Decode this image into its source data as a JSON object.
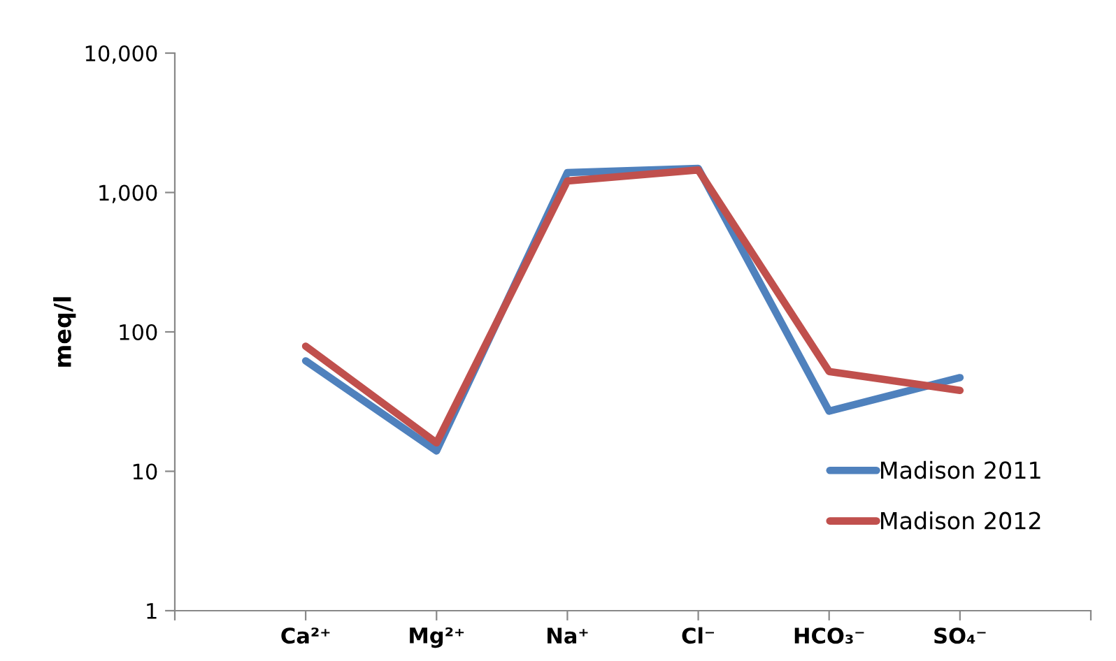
{
  "chart_data": {
    "type": "line",
    "ylabel": "meq/l",
    "categories": [
      null,
      "Ca²⁺",
      "Mg²⁺",
      "Na⁺",
      "Cl⁻",
      "HCO₃⁻",
      "SO₄⁻",
      null
    ],
    "series": [
      {
        "name": "Madison 2011",
        "color": "#4f81bd",
        "values": [
          null,
          62,
          14,
          1390,
          1490,
          27,
          47,
          null
        ]
      },
      {
        "name": "Madison 2012",
        "color": "#c0504d",
        "values": [
          null,
          79,
          16,
          1210,
          1450,
          52,
          38,
          null
        ]
      }
    ],
    "log": "y",
    "ylim": [
      1,
      10000
    ],
    "yticks": [
      1,
      10,
      100,
      {
        "value": 1000,
        "label": "1,000"
      },
      {
        "value": 10000,
        "label": "10,000"
      }
    ],
    "grid": false,
    "legend": "bottom right",
    "marker": "none",
    "line_style": "solid"
  }
}
